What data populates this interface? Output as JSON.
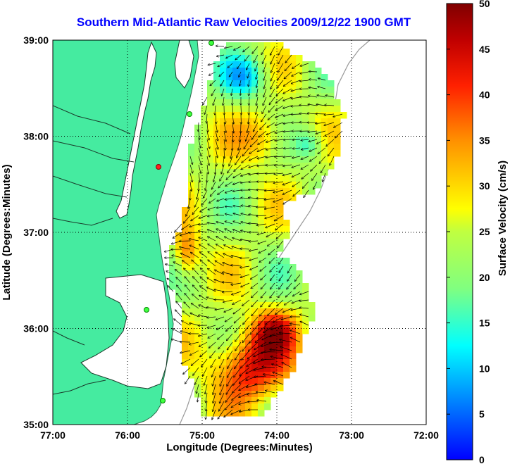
{
  "title": "Southern Mid-Atlantic Raw Velocities 2009/12/22 1900 GMT",
  "map": {
    "xlabel": "Longitude (Degrees:Minutes)",
    "ylabel": "Latitude (Degrees:Minutes)",
    "lon_ticks": [
      "77:00",
      "76:00",
      "75:00",
      "74:00",
      "73:00",
      "72:00"
    ],
    "lat_ticks": [
      "39:00",
      "38:00",
      "37:00",
      "36:00",
      "35:00"
    ],
    "lon_range": [
      -77,
      -72
    ],
    "lat_range": [
      35,
      39
    ],
    "land_color": "#45eba0",
    "grid": true
  },
  "colorbar": {
    "label": "Surface Velocity (cm/s)",
    "ticks": [
      "50",
      "45",
      "40",
      "35",
      "30",
      "25",
      "20",
      "15",
      "10",
      "5",
      "0"
    ],
    "range": [
      0,
      50
    ],
    "colormap": "jet"
  }
}
